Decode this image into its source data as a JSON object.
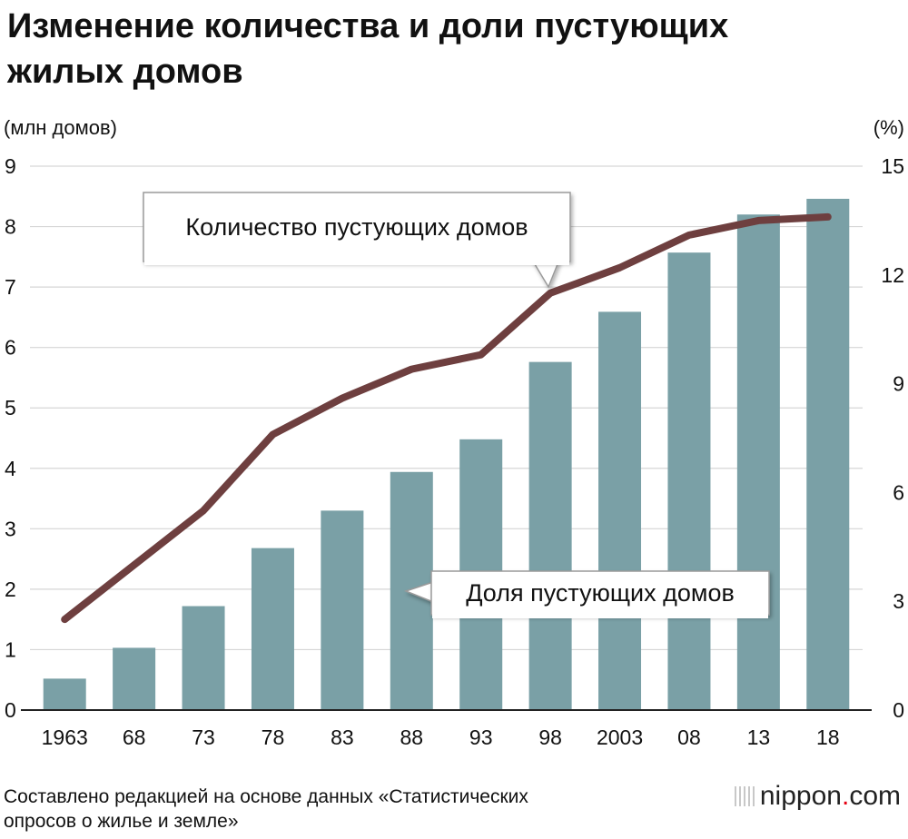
{
  "title_line1": "Изменение количества и доли пустующих",
  "title_line2": "жилых домов",
  "source_line1": "Составлено редакцией на основе данных «Статистических",
  "source_line2": "опросов о жилье и земле»",
  "logo": {
    "name": "nippon",
    "dot": ".",
    "suffix": "com"
  },
  "colors": {
    "bar": "#7aa0a6",
    "line": "#6e3f3f",
    "grid": "#d6d6d6"
  },
  "chart_data": {
    "type": "bar+line",
    "title": "Изменение количества и доли пустующих жилых домов",
    "categories": [
      "1963",
      "68",
      "73",
      "78",
      "83",
      "88",
      "93",
      "98",
      "2003",
      "08",
      "13",
      "18"
    ],
    "y_left": {
      "label": "(млн домов)",
      "range": [
        0,
        9
      ],
      "ticks": [
        "0",
        "1",
        "2",
        "3",
        "4",
        "5",
        "6",
        "7",
        "8",
        "9"
      ]
    },
    "y_right": {
      "label": "(%)",
      "range": [
        0,
        15
      ],
      "ticks": [
        "0",
        "3",
        "6",
        "9",
        "12",
        "15"
      ]
    },
    "series": [
      {
        "name": "Количество пустующих домов",
        "type": "bar",
        "axis": "left",
        "values": [
          0.52,
          1.03,
          1.72,
          2.68,
          3.3,
          3.94,
          4.48,
          5.76,
          6.59,
          7.57,
          8.2,
          8.46
        ]
      },
      {
        "name": "Доля пустующих домов",
        "type": "line",
        "axis": "right",
        "values": [
          2.5,
          4.0,
          5.5,
          7.6,
          8.6,
          9.4,
          9.8,
          11.5,
          12.2,
          13.1,
          13.5,
          13.6
        ]
      }
    ],
    "annotations": [
      "Количество пустующих домов",
      "Доля пустующих домов"
    ],
    "grid": true
  }
}
